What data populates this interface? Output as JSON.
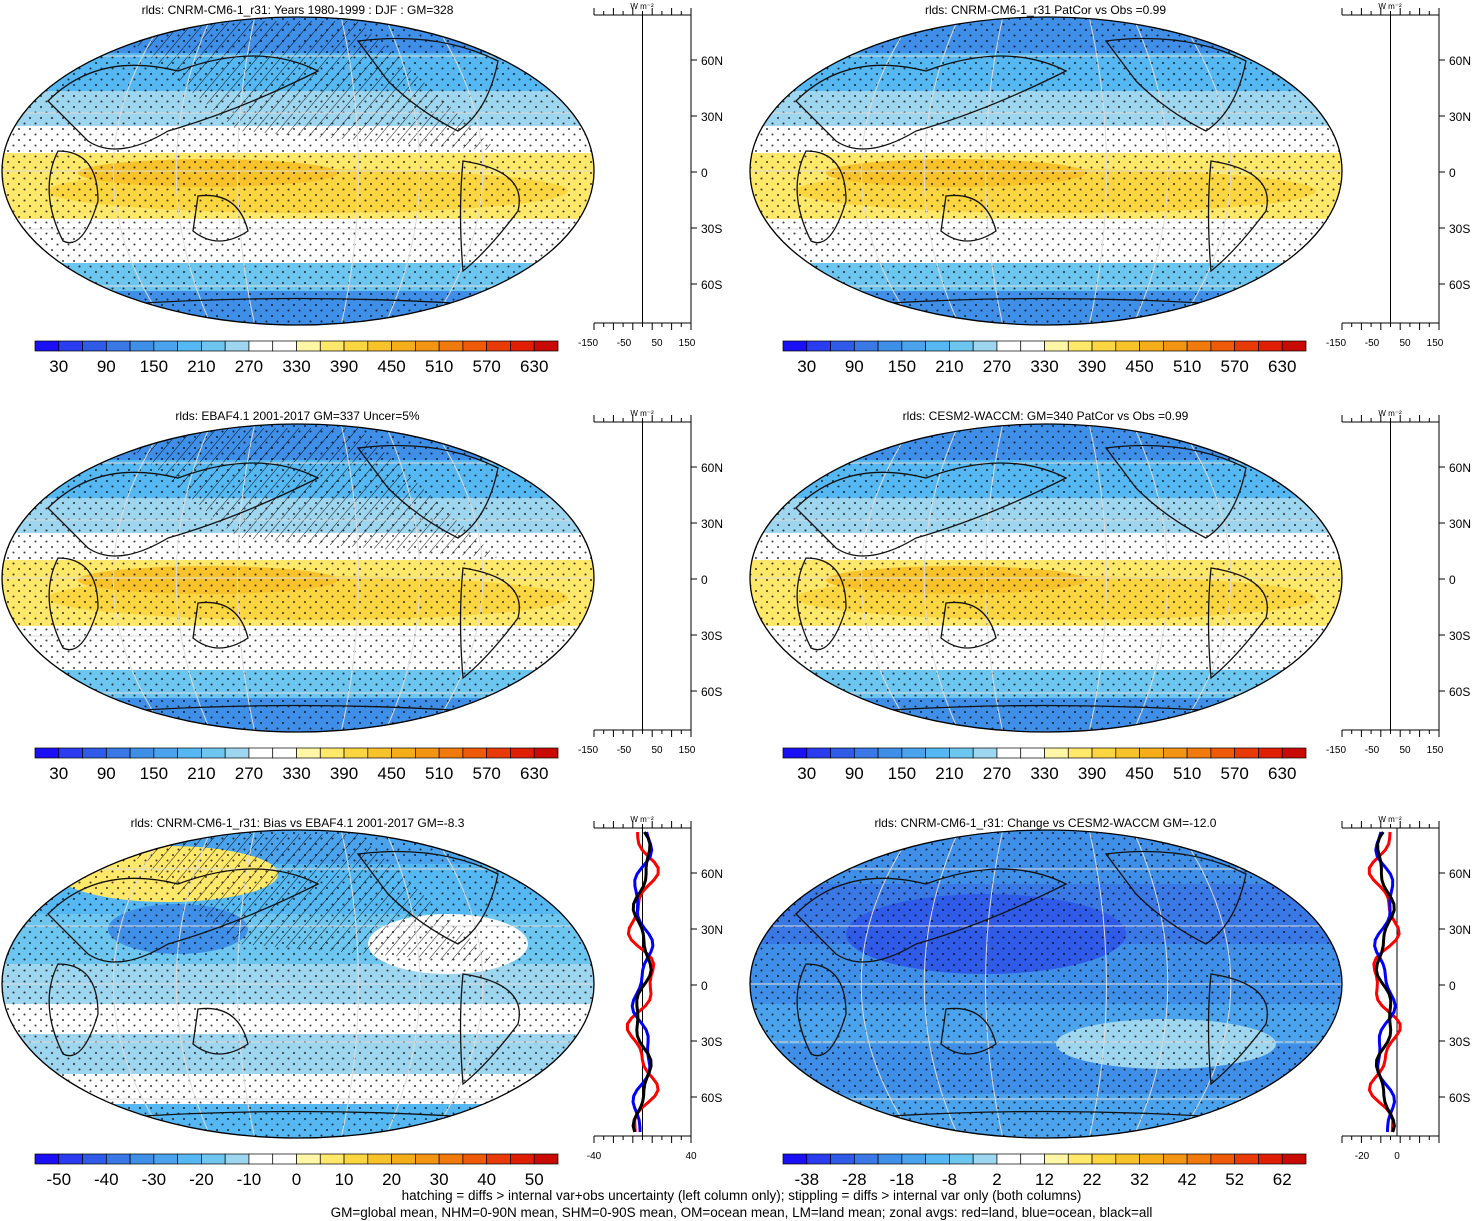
{
  "panels": [
    {
      "title": "rlds: CNRM-CM6-1_r31: Years 1980-1999 : DJF : GM=328",
      "type": "abs",
      "colorbar_labels": [
        "30",
        "90",
        "150",
        "210",
        "270",
        "330",
        "390",
        "450",
        "510",
        "570",
        "630"
      ],
      "zonal": {
        "ticks": [
          "-150",
          "-50",
          "50",
          "150"
        ],
        "unit": "W m⁻²"
      },
      "hatched": true
    },
    {
      "title": "rlds: CNRM-CM6-1_r31 PatCor vs Obs =0.99",
      "type": "abs",
      "colorbar_labels": [
        "30",
        "90",
        "150",
        "210",
        "270",
        "330",
        "390",
        "450",
        "510",
        "570",
        "630"
      ],
      "zonal": {
        "ticks": [
          "-150",
          "-50",
          "50",
          "150"
        ],
        "unit": "W m⁻²"
      },
      "hatched": false
    },
    {
      "title": "rlds: EBAF4.1 2001-2017 GM=337 Uncer=5%",
      "type": "abs",
      "colorbar_labels": [
        "30",
        "90",
        "150",
        "210",
        "270",
        "330",
        "390",
        "450",
        "510",
        "570",
        "630"
      ],
      "zonal": {
        "ticks": [
          "-150",
          "-50",
          "50",
          "150"
        ],
        "unit": "W m⁻²"
      },
      "hatched": true
    },
    {
      "title": "rlds: CESM2-WACCM: GM=340 PatCor vs Obs =0.99",
      "type": "abs",
      "colorbar_labels": [
        "30",
        "90",
        "150",
        "210",
        "270",
        "330",
        "390",
        "450",
        "510",
        "570",
        "630"
      ],
      "zonal": {
        "ticks": [
          "-150",
          "-50",
          "50",
          "150"
        ],
        "unit": "W m⁻²"
      },
      "hatched": false
    },
    {
      "title": "rlds: CNRM-CM6-1_r31: Bias vs EBAF4.1 2001-2017 GM=-8.3",
      "type": "bias",
      "colorbar_labels": [
        "-50",
        "-40",
        "-30",
        "-20",
        "-10",
        "0",
        "10",
        "20",
        "30",
        "40",
        "50"
      ],
      "zonal": {
        "ticks": [
          "-40",
          "40"
        ],
        "unit": "W m⁻²"
      },
      "hatched": true
    },
    {
      "title": "rlds: CNRM-CM6-1_r31: Change vs CESM2-WACCM GM=-12.0",
      "type": "change",
      "colorbar_labels": [
        "-38",
        "-28",
        "-18",
        "-8",
        "2",
        "12",
        "22",
        "32",
        "42",
        "52",
        "62"
      ],
      "zonal": {
        "ticks": [
          "-20",
          "0"
        ],
        "unit": "W m⁻²"
      },
      "hatched": false
    }
  ],
  "lat_labels": [
    "60N",
    "30N",
    "0",
    "30S",
    "60S"
  ],
  "colors": {
    "palette": [
      "#1a0ff5",
      "#2a3cf0",
      "#2f5be8",
      "#3a78e6",
      "#3f8fe8",
      "#4aa3ec",
      "#55b8f2",
      "#6cc6f0",
      "#9fd6ef",
      "#ffffff",
      "#ffffff",
      "#fff6a6",
      "#ffe86a",
      "#fcd640",
      "#f8c32a",
      "#f5ad1a",
      "#f39512",
      "#f07a0c",
      "#ee5a08",
      "#e83a06",
      "#e01e04",
      "#c80a02"
    ],
    "land_line": "#111111",
    "zonal_land": "#ff0000",
    "zonal_ocean": "#0000ff",
    "zonal_all": "#000000"
  },
  "footer": {
    "line1": "hatching = diffs > internal var+obs uncertainty (left column only); stippling = diffs > internal var only (both columns)",
    "line2": "GM=global mean, NHM=0-90N mean, SHM=0-90S mean, OM=ocean mean, LM=land mean; zonal avgs: red=land, blue=ocean, black=all"
  }
}
